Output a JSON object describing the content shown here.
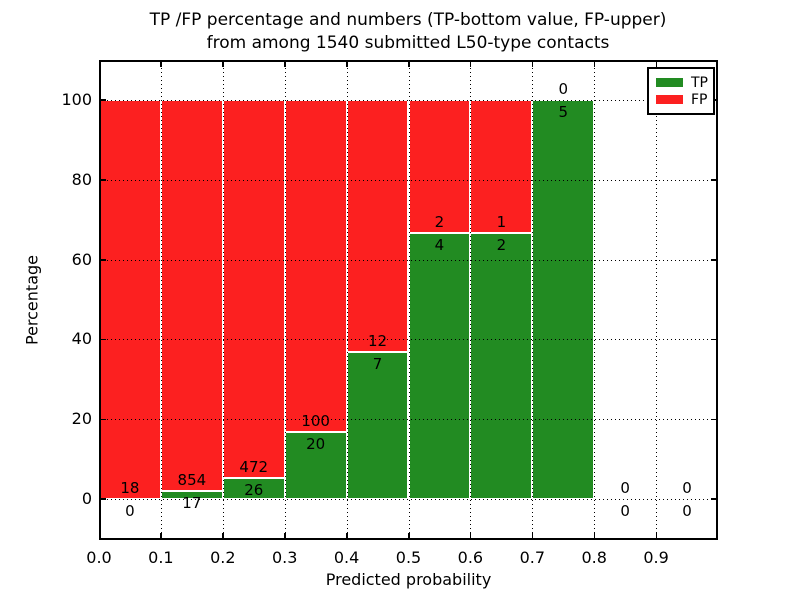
{
  "chart_data": {
    "type": "bar",
    "variant": "stacked-100-percent",
    "title": "TP /FP percentage and numbers (TP-bottom value, FP-upper)\nfrom among 1540 submitted L50-type contacts",
    "total_submitted": 1540,
    "xlabel": "Predicted probability",
    "ylabel": "Percentage",
    "xlim": [
      0.0,
      1.0
    ],
    "ylim": [
      -10.3,
      110.0
    ],
    "x_tick_values": [
      0.0,
      0.1,
      0.2,
      0.3,
      0.4,
      0.5,
      0.6,
      0.7,
      0.8,
      0.9
    ],
    "x_tick_labels": [
      "0.0",
      "0.1",
      "0.2",
      "0.3",
      "0.4",
      "0.5",
      "0.6",
      "0.7",
      "0.8",
      "0.9"
    ],
    "y_tick_values": [
      0,
      20,
      40,
      60,
      80,
      100
    ],
    "y_tick_labels": [
      "0",
      "20",
      "40",
      "60",
      "80",
      "100"
    ],
    "grid": "dotted",
    "annotation_rule": "FP count above TP/FP boundary, TP count below boundary",
    "legend": {
      "position": "upper-right",
      "items": [
        {
          "label": "TP",
          "color": "#228B22"
        },
        {
          "label": "FP",
          "color": "#FC2020"
        }
      ]
    },
    "bins": [
      {
        "x_start": 0.0,
        "x_end": 0.1,
        "tp": 0,
        "fp": 18
      },
      {
        "x_start": 0.1,
        "x_end": 0.2,
        "tp": 17,
        "fp": 854
      },
      {
        "x_start": 0.2,
        "x_end": 0.3,
        "tp": 26,
        "fp": 472
      },
      {
        "x_start": 0.3,
        "x_end": 0.4,
        "tp": 20,
        "fp": 100
      },
      {
        "x_start": 0.4,
        "x_end": 0.5,
        "tp": 7,
        "fp": 12
      },
      {
        "x_start": 0.5,
        "x_end": 0.6,
        "tp": 4,
        "fp": 2
      },
      {
        "x_start": 0.6,
        "x_end": 0.7,
        "tp": 2,
        "fp": 1
      },
      {
        "x_start": 0.7,
        "x_end": 0.8,
        "tp": 5,
        "fp": 0
      },
      {
        "x_start": 0.8,
        "x_end": 0.9,
        "tp": 0,
        "fp": 0
      },
      {
        "x_start": 0.9,
        "x_end": 1.0,
        "tp": 0,
        "fp": 0
      }
    ],
    "colors": {
      "tp": "#228B22",
      "fp": "#FC2020",
      "grid": "#000000",
      "frame": "#000000",
      "bar_edge": "#FFFFFF",
      "background": "#FFFFFF",
      "text": "#000000"
    }
  }
}
